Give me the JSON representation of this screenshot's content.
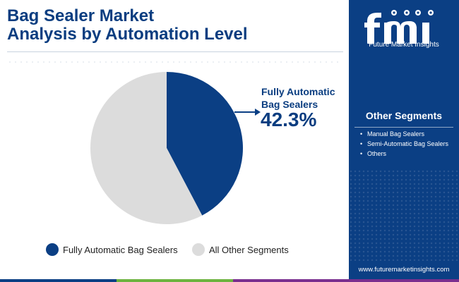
{
  "title_line1": "Bag Sealer Market",
  "title_line2": "Analysis by Automation Level",
  "brand": {
    "logo_text": "fmi",
    "name": "Future Market Insights",
    "url": "www.futuremarketinsights.com"
  },
  "callout": {
    "label_line1": "Fully Automatic",
    "label_line2": "Bag Sealers",
    "value": "42.3%"
  },
  "other_segments": {
    "title": "Other Segments",
    "items": [
      "Manual Bag Sealers",
      "Semi-Automatic Bag Sealers",
      "Others"
    ]
  },
  "chart_data": {
    "type": "pie",
    "title": "Bag Sealer Market Analysis by Automation Level",
    "slices": [
      {
        "label": "Fully Automatic Bag Sealers",
        "value": 42.3,
        "color": "#0b3f84"
      },
      {
        "label": "All Other Segments",
        "value": 57.7,
        "color": "#dcdcdc"
      }
    ],
    "start_angle": "12 o'clock, clockwise",
    "legend_position": "bottom"
  },
  "colors": {
    "brand_blue": "#0b3f84",
    "light_gray": "#dcdcdc",
    "bottom_bar": [
      "#0b3f84",
      "#6cb33f",
      "#7a2f8f"
    ]
  }
}
